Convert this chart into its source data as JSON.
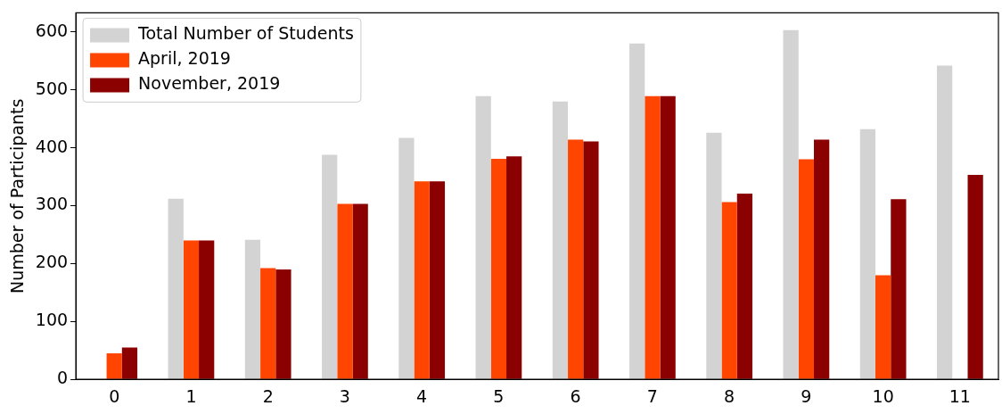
{
  "chart_data": {
    "type": "bar",
    "ylabel": "Number of Participants",
    "categories": [
      "0",
      "1",
      "2",
      "3",
      "4",
      "5",
      "6",
      "7",
      "8",
      "9",
      "10",
      "11"
    ],
    "series": [
      {
        "name": "Total Number of Students",
        "color": "#d3d3d3",
        "values": [
          null,
          312,
          241,
          388,
          417,
          489,
          480,
          580,
          426,
          603,
          432,
          542
        ]
      },
      {
        "name": "April, 2019",
        "color": "#ff4500",
        "values": [
          45,
          240,
          192,
          303,
          342,
          381,
          414,
          489,
          306,
          380,
          180,
          null
        ]
      },
      {
        "name": "November, 2019",
        "color": "#8b0000",
        "values": [
          55,
          240,
          190,
          303,
          342,
          385,
          411,
          489,
          321,
          414,
          311,
          353
        ]
      }
    ],
    "ylim": [
      0,
      633
    ],
    "yticks": [
      0,
      100,
      200,
      300,
      400,
      500,
      600
    ],
    "grid": false,
    "legend": "top left"
  }
}
